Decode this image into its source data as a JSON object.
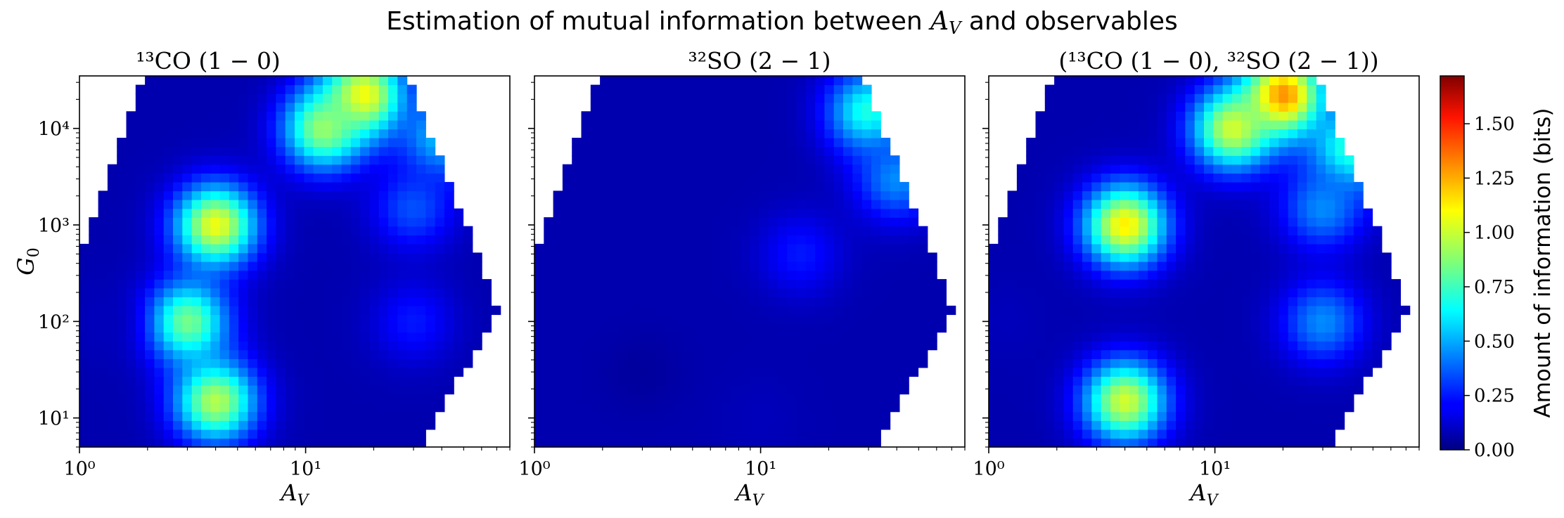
{
  "figure": {
    "title_pre": "Estimation of mutual information between ",
    "title_var": "A",
    "title_sub": "V",
    "title_post": " and observables"
  },
  "chart_data": [
    {
      "type": "heatmap",
      "title": "¹³CO (1 − 0)",
      "xlabel": "A_V",
      "ylabel": "G_0",
      "x_scale": "log",
      "y_scale": "log",
      "xlim": [
        1,
        80
      ],
      "ylim": [
        5,
        35000
      ],
      "x_ticks": [
        {
          "value": 1,
          "label": "10⁰"
        },
        {
          "value": 10,
          "label": "10¹"
        }
      ],
      "y_ticks": [
        {
          "value": 10,
          "label": "10¹"
        },
        {
          "value": 100,
          "label": "10²"
        },
        {
          "value": 1000,
          "label": "10³"
        },
        {
          "value": 10000,
          "label": "10⁴"
        }
      ],
      "colormap": "jet",
      "value_range": [
        0,
        1.7
      ],
      "regions": [
        {
          "av": 4,
          "g0": 1000,
          "value": 1.05
        },
        {
          "av": 4,
          "g0": 15,
          "value": 0.95
        },
        {
          "av": 3,
          "g0": 100,
          "value": 0.85
        },
        {
          "av": 18,
          "g0": 22000,
          "value": 1.1
        },
        {
          "av": 12,
          "g0": 10000,
          "value": 0.9
        },
        {
          "av": 40,
          "g0": 8000,
          "value": 0.55
        },
        {
          "av": 30,
          "g0": 1500,
          "value": 0.35
        },
        {
          "av": 30,
          "g0": 100,
          "value": 0.25
        },
        {
          "av": 1.2,
          "g0": 100,
          "value": 0.1
        }
      ]
    },
    {
      "type": "heatmap",
      "title": "³²SO (2 − 1)",
      "xlabel": "A_V",
      "ylabel": "",
      "x_scale": "log",
      "y_scale": "log",
      "xlim": [
        1,
        80
      ],
      "ylim": [
        5,
        35000
      ],
      "x_ticks": [
        {
          "value": 1,
          "label": "10⁰"
        },
        {
          "value": 10,
          "label": "10¹"
        }
      ],
      "y_ticks": [],
      "colormap": "jet",
      "value_range": [
        0,
        1.7
      ],
      "regions": [
        {
          "av": 30,
          "g0": 15000,
          "value": 0.7
        },
        {
          "av": 40,
          "g0": 3000,
          "value": 0.45
        },
        {
          "av": 15,
          "g0": 500,
          "value": 0.25
        },
        {
          "av": 3,
          "g0": 30,
          "value": 0.05
        },
        {
          "av": 10,
          "g0": 10,
          "value": 0.1
        }
      ]
    },
    {
      "type": "heatmap",
      "title": "(¹³CO (1 − 0), ³²SO (2 − 1))",
      "xlabel": "A_V",
      "ylabel": "",
      "x_scale": "log",
      "y_scale": "log",
      "xlim": [
        1,
        80
      ],
      "ylim": [
        5,
        35000
      ],
      "x_ticks": [
        {
          "value": 1,
          "label": "10⁰"
        },
        {
          "value": 10,
          "label": "10¹"
        }
      ],
      "y_ticks": [],
      "colormap": "jet",
      "value_range": [
        0,
        1.7
      ],
      "regions": [
        {
          "av": 4,
          "g0": 1000,
          "value": 1.1
        },
        {
          "av": 4,
          "g0": 15,
          "value": 1.0
        },
        {
          "av": 20,
          "g0": 22000,
          "value": 1.3
        },
        {
          "av": 12,
          "g0": 10000,
          "value": 1.0
        },
        {
          "av": 40,
          "g0": 6000,
          "value": 0.75
        },
        {
          "av": 30,
          "g0": 1500,
          "value": 0.45
        },
        {
          "av": 30,
          "g0": 100,
          "value": 0.45
        },
        {
          "av": 1.2,
          "g0": 100,
          "value": 0.1
        }
      ]
    }
  ],
  "colorbar": {
    "label": "Amount of information (bits)",
    "ticks": [
      "0.00",
      "0.25",
      "0.50",
      "0.75",
      "1.00",
      "1.25",
      "1.50"
    ],
    "tick_values": [
      0,
      0.25,
      0.5,
      0.75,
      1.0,
      1.25,
      1.5
    ],
    "range": [
      0,
      1.72
    ],
    "colormap": "jet"
  }
}
